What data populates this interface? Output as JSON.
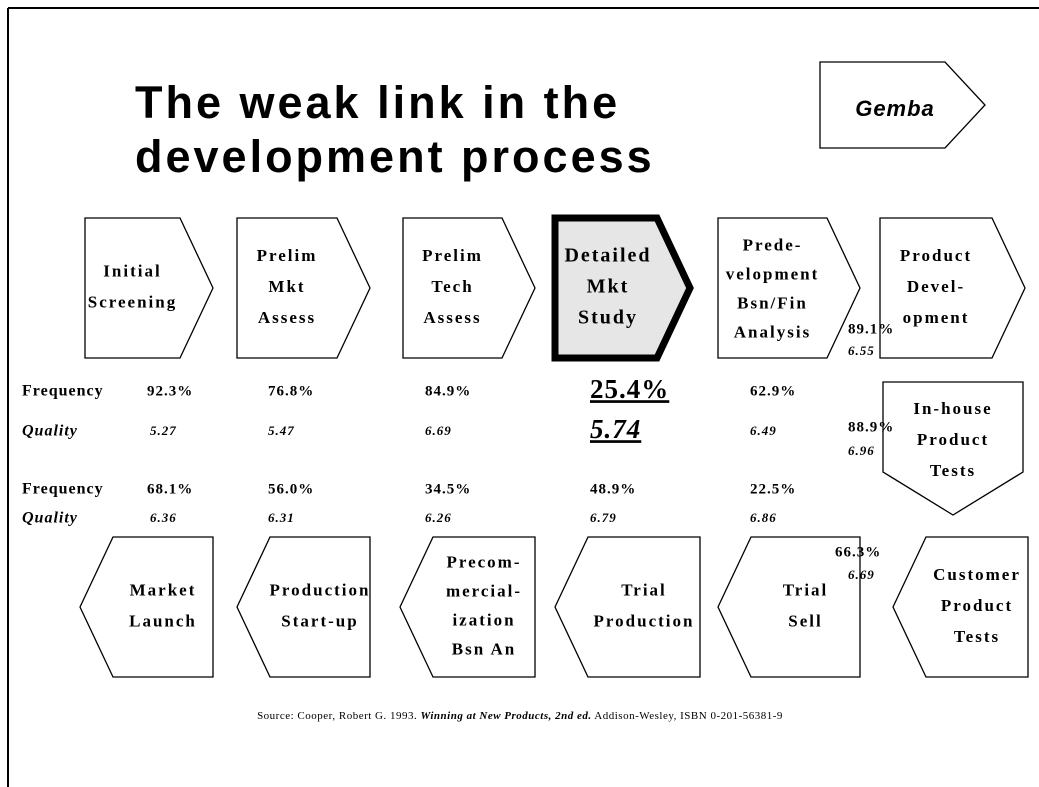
{
  "title": [
    "The weak link in the",
    "development process"
  ],
  "badge": "Gemba",
  "process_top": [
    {
      "lines": [
        "Initial",
        "Screening"
      ]
    },
    {
      "lines": [
        "Prelim",
        "Mkt",
        "Assess"
      ]
    },
    {
      "lines": [
        "Prelim",
        "Tech",
        "Assess"
      ]
    },
    {
      "lines": [
        "Detailed",
        "Mkt",
        "Study"
      ]
    },
    {
      "lines": [
        "Prede-",
        "velopment",
        "Bsn/Fin",
        "Analysis"
      ]
    },
    {
      "lines": [
        "Product",
        "Devel-",
        "opment"
      ]
    }
  ],
  "in_house": {
    "lines": [
      "In-house",
      "Product",
      "Tests"
    ]
  },
  "process_bottom": [
    {
      "lines": [
        "Market",
        "Launch"
      ]
    },
    {
      "lines": [
        "Production",
        "Start-up"
      ]
    },
    {
      "lines": [
        "Precom-",
        "mercial-",
        "ization",
        "Bsn An"
      ]
    },
    {
      "lines": [
        "Trial",
        "Production"
      ]
    },
    {
      "lines": [
        "Trial",
        "Sell"
      ]
    },
    {
      "lines": [
        "Customer",
        "Product",
        "Tests"
      ]
    }
  ],
  "stats": [
    {
      "label": "Frequency",
      "values": [
        "92.3%",
        "76.8%",
        "84.9%",
        "25.4%",
        "62.9%"
      ]
    },
    {
      "label": "Quality",
      "values": [
        "5.27",
        "5.47",
        "6.69",
        "5.74",
        "6.49"
      ]
    },
    {
      "label": "Frequency",
      "values": [
        "68.1%",
        "56.0%",
        "34.5%",
        "48.9%",
        "22.5%"
      ]
    },
    {
      "label": "Quality",
      "values": [
        "6.36",
        "6.31",
        "6.26",
        "6.79",
        "6.86"
      ]
    }
  ],
  "side_stats": [
    [
      "89.1%",
      "6.55"
    ],
    [
      "88.9%",
      "6.96"
    ],
    [
      "66.3%",
      "6.69"
    ]
  ],
  "source": {
    "prefix": "Source: Cooper, Robert G. 1993. ",
    "work": "Winning at New Products, 2nd ed.",
    "suffix": " Addison-Wesley, ISBN 0-201-56381-9"
  }
}
